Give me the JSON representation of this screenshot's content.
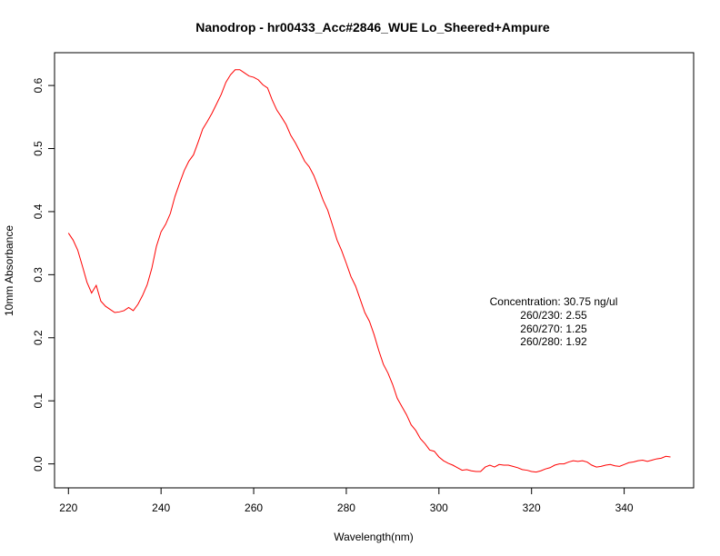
{
  "chart_data": {
    "type": "line",
    "title": "Nanodrop - hr00433_Acc#2846_WUE Lo_Sheered+Ampure",
    "xlabel": "Wavelength(nm)",
    "ylabel": "10mm Absorbance",
    "xlim": [
      217,
      355
    ],
    "ylim": [
      -0.038,
      0.652
    ],
    "x_ticks": [
      220,
      240,
      260,
      280,
      300,
      320,
      340
    ],
    "y_ticks": [
      0.0,
      0.1,
      0.2,
      0.3,
      0.4,
      0.5,
      0.6
    ],
    "x_tick_labels": [
      "220",
      "240",
      "260",
      "280",
      "300",
      "320",
      "340"
    ],
    "y_tick_labels": [
      "0.0",
      "0.1",
      "0.2",
      "0.3",
      "0.4",
      "0.5",
      "0.6"
    ],
    "grid": false,
    "series": [
      {
        "color": "#ff0000",
        "x": [
          220,
          221,
          222,
          223,
          224,
          225,
          226,
          227,
          228,
          229,
          230,
          231,
          232,
          233,
          234,
          235,
          236,
          237,
          238,
          239,
          240,
          241,
          242,
          243,
          244,
          245,
          246,
          247,
          248,
          249,
          250,
          251,
          252,
          253,
          254,
          255,
          256,
          257,
          258,
          259,
          260,
          261,
          262,
          263,
          264,
          265,
          266,
          267,
          268,
          269,
          270,
          271,
          272,
          273,
          274,
          275,
          276,
          277,
          278,
          279,
          280,
          281,
          282,
          283,
          284,
          285,
          286,
          287,
          288,
          289,
          290,
          291,
          292,
          293,
          294,
          295,
          296,
          297,
          298,
          299,
          300,
          301,
          302,
          303,
          304,
          305,
          306,
          307,
          308,
          309,
          310,
          311,
          312,
          313,
          314,
          315,
          316,
          317,
          318,
          319,
          320,
          321,
          322,
          323,
          324,
          325,
          326,
          327,
          328,
          329,
          330,
          331,
          332,
          333,
          334,
          335,
          336,
          337,
          338,
          339,
          340,
          341,
          342,
          343,
          344,
          345,
          346,
          347,
          348,
          349,
          350
        ],
        "y": [
          0.366,
          0.355,
          0.339,
          0.314,
          0.288,
          0.271,
          0.283,
          0.258,
          0.25,
          0.245,
          0.24,
          0.241,
          0.243,
          0.248,
          0.243,
          0.253,
          0.267,
          0.284,
          0.31,
          0.345,
          0.368,
          0.38,
          0.397,
          0.424,
          0.445,
          0.465,
          0.48,
          0.49,
          0.51,
          0.531,
          0.543,
          0.556,
          0.571,
          0.586,
          0.605,
          0.617,
          0.625,
          0.625,
          0.62,
          0.615,
          0.613,
          0.609,
          0.601,
          0.596,
          0.577,
          0.561,
          0.55,
          0.538,
          0.521,
          0.509,
          0.495,
          0.48,
          0.471,
          0.457,
          0.438,
          0.418,
          0.402,
          0.379,
          0.355,
          0.338,
          0.318,
          0.297,
          0.282,
          0.261,
          0.24,
          0.226,
          0.205,
          0.18,
          0.158,
          0.144,
          0.126,
          0.104,
          0.091,
          0.078,
          0.062,
          0.053,
          0.04,
          0.032,
          0.022,
          0.02,
          0.011,
          0.005,
          0.001,
          -0.002,
          -0.006,
          -0.01,
          -0.009,
          -0.011,
          -0.012,
          -0.012,
          -0.005,
          -0.002,
          -0.005,
          -0.001,
          -0.002,
          -0.002,
          -0.004,
          -0.006,
          -0.009,
          -0.01,
          -0.012,
          -0.013,
          -0.011,
          -0.008,
          -0.006,
          -0.002,
          0.0,
          0.0,
          0.003,
          0.005,
          0.004,
          0.005,
          0.003,
          -0.002,
          -0.005,
          -0.004,
          -0.002,
          -0.001,
          -0.003,
          -0.004,
          -0.001,
          0.002,
          0.003,
          0.005,
          0.006,
          0.004,
          0.006,
          0.008,
          0.009,
          0.012,
          0.011
        ]
      }
    ],
    "annotations": {
      "concentration": "Concentration: 30.75 ng/ul",
      "r230": "260/230: 2.55",
      "r270": "260/270: 1.25",
      "r280": "260/280: 1.92"
    }
  }
}
